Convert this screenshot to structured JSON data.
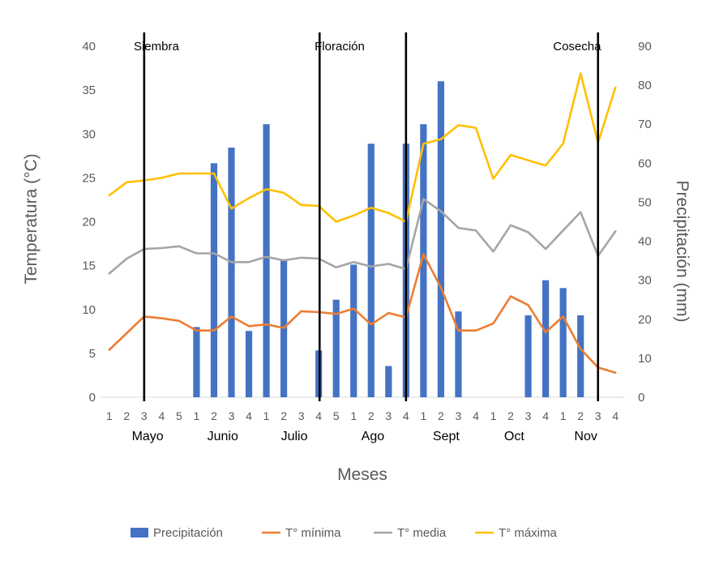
{
  "chart_data": {
    "type": "bar+line",
    "xlabel": "Meses",
    "ylabel_left": "Temperatura (°C)",
    "ylabel_right": "Precipitación (mm)",
    "ylim_left": [
      0,
      40
    ],
    "yticks_left": [
      "0",
      "5",
      "10",
      "15",
      "20",
      "25",
      "30",
      "35",
      "40"
    ],
    "ylim_right": [
      0,
      90
    ],
    "yticks_right": [
      "0",
      "10",
      "20",
      "30",
      "40",
      "50",
      "60",
      "70",
      "80",
      "90"
    ],
    "weeks": [
      "1",
      "2",
      "3",
      "4",
      "5",
      "1",
      "2",
      "3",
      "4",
      "1",
      "2",
      "3",
      "4",
      "5",
      "1",
      "2",
      "3",
      "4",
      "1",
      "2",
      "3",
      "4",
      "1",
      "2",
      "3",
      "4",
      "1",
      "2",
      "3",
      "4"
    ],
    "months": [
      {
        "label": "Mayo",
        "pos": 2.2
      },
      {
        "label": "Junio",
        "pos": 6.5
      },
      {
        "label": "Julio",
        "pos": 10.6
      },
      {
        "label": "Ago",
        "pos": 15.1
      },
      {
        "label": "Sept",
        "pos": 19.3
      },
      {
        "label": "Oct",
        "pos": 23.2
      },
      {
        "label": "Nov",
        "pos": 27.3
      }
    ],
    "stages": [
      {
        "label": "Siembra",
        "line_at": 2,
        "text_pos": 2.7
      },
      {
        "label": "Floración",
        "line_at": 12.05,
        "text_pos": 13.2
      },
      {
        "label": "Floración_end",
        "line_at": 17.0,
        "text_pos": null
      },
      {
        "label": "Cosecha",
        "line_at": 28.0,
        "text_pos": 26.8
      }
    ],
    "series": [
      {
        "name": "Precipitación",
        "type": "bar",
        "axis": "right",
        "color": "#4472C4",
        "values": [
          0,
          0,
          0,
          0,
          0,
          18,
          60,
          64,
          17,
          70,
          35,
          0,
          12,
          25,
          34,
          65,
          8,
          65,
          70,
          81,
          22,
          0,
          0,
          0,
          21,
          30,
          28,
          21,
          0,
          0
        ]
      },
      {
        "name": "T° mínima",
        "type": "line",
        "axis": "left",
        "color": "#ED7D31",
        "values": [
          5.4,
          7.3,
          9.2,
          9.0,
          8.7,
          7.6,
          7.6,
          9.2,
          8.1,
          8.3,
          7.9,
          9.8,
          9.7,
          9.5,
          10.1,
          8.3,
          9.6,
          9.1,
          16.3,
          12.5,
          7.6,
          7.6,
          8.4,
          11.5,
          10.5,
          7.4,
          9.2,
          5.5,
          3.4,
          2.8
        ]
      },
      {
        "name": "T° media",
        "type": "line",
        "axis": "left",
        "color": "#A5A5A5",
        "values": [
          14.1,
          15.8,
          16.9,
          17.0,
          17.2,
          16.4,
          16.4,
          15.4,
          15.4,
          16.0,
          15.6,
          15.9,
          15.8,
          14.8,
          15.4,
          14.9,
          15.2,
          14.6,
          22.6,
          21.2,
          19.3,
          19.0,
          16.6,
          19.6,
          18.8,
          16.9,
          19.0,
          21.1,
          16.1,
          18.9
        ]
      },
      {
        "name": "T° máxima",
        "type": "line",
        "axis": "left",
        "color": "#FFC000",
        "values": [
          23.0,
          24.5,
          24.7,
          25.0,
          25.5,
          25.5,
          25.5,
          21.5,
          22.7,
          23.7,
          23.3,
          21.9,
          21.8,
          20.0,
          20.7,
          21.6,
          21.0,
          20.0,
          28.9,
          29.4,
          31.0,
          30.7,
          24.9,
          27.6,
          27.0,
          26.4,
          28.9,
          36.9,
          29.0,
          35.3
        ]
      }
    ],
    "legend": {
      "position": "bottom",
      "entries": [
        "Precipitación",
        "T° mínima",
        "T° media",
        "T° máxima"
      ]
    }
  }
}
